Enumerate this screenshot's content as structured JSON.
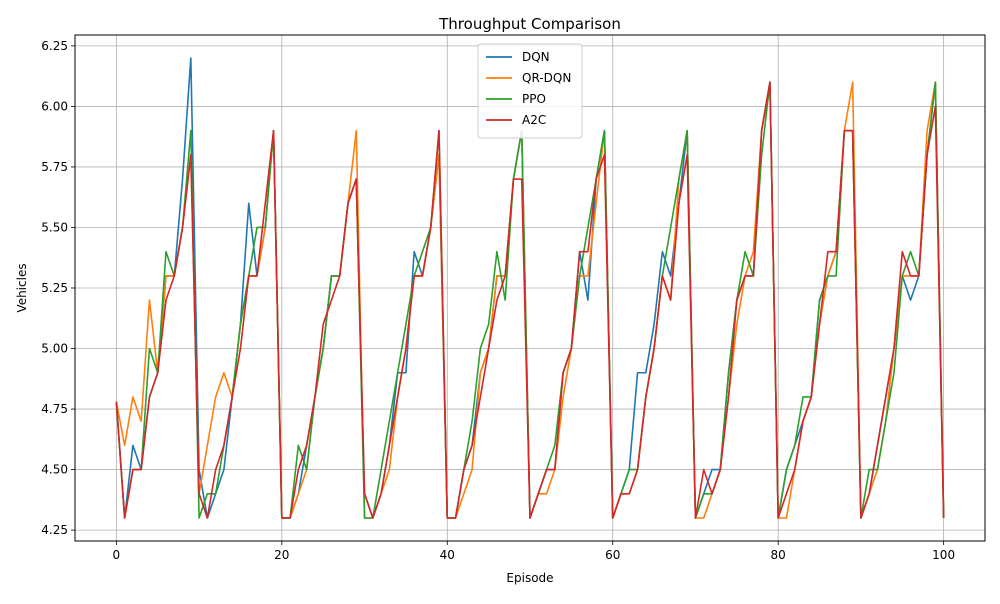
{
  "chart_data": {
    "type": "line",
    "title": "Throughput Comparison",
    "xlabel": "Episode",
    "ylabel": "Vehicles",
    "xlim": [
      -5,
      105
    ],
    "ylim": [
      4.205,
      6.295
    ],
    "x_ticks": [
      0,
      20,
      40,
      60,
      80,
      100
    ],
    "y_ticks": [
      4.25,
      4.5,
      4.75,
      5.0,
      5.25,
      5.5,
      5.75,
      6.0,
      6.25
    ],
    "x_tick_labels": [
      "0",
      "20",
      "40",
      "60",
      "80",
      "100"
    ],
    "y_tick_labels": [
      "4.25",
      "4.50",
      "4.75",
      "5.00",
      "5.25",
      "5.50",
      "5.75",
      "6.00",
      "6.25"
    ],
    "grid": true,
    "legend": "top-center",
    "x": [
      0,
      1,
      2,
      3,
      4,
      5,
      6,
      7,
      8,
      9,
      10,
      11,
      12,
      13,
      14,
      15,
      16,
      17,
      18,
      19,
      20,
      21,
      22,
      23,
      24,
      25,
      26,
      27,
      28,
      29,
      30,
      31,
      32,
      33,
      34,
      35,
      36,
      37,
      38,
      39,
      40,
      41,
      42,
      43,
      44,
      45,
      46,
      47,
      48,
      49,
      50,
      51,
      52,
      53,
      54,
      55,
      56,
      57,
      58,
      59,
      60,
      61,
      62,
      63,
      64,
      65,
      66,
      67,
      68,
      69,
      70,
      71,
      72,
      73,
      74,
      75,
      76,
      77,
      78,
      79,
      80,
      81,
      82,
      83,
      84,
      85,
      86,
      87,
      88,
      89,
      90,
      91,
      92,
      93,
      94,
      95,
      96,
      97,
      98,
      99,
      100
    ],
    "series": [
      {
        "name": "DQN",
        "color": "#1f77b4",
        "values": [
          4.78,
          4.3,
          4.6,
          4.5,
          4.8,
          4.9,
          5.3,
          5.3,
          5.7,
          6.2,
          4.5,
          4.3,
          4.4,
          4.5,
          4.8,
          5.1,
          5.6,
          5.3,
          5.5,
          5.9,
          4.3,
          4.3,
          4.4,
          4.6,
          4.8,
          5.0,
          5.3,
          5.3,
          5.6,
          5.7,
          4.4,
          4.3,
          4.4,
          4.6,
          4.9,
          4.9,
          5.4,
          5.3,
          5.5,
          5.8,
          4.3,
          4.3,
          4.5,
          4.6,
          4.9,
          5.0,
          5.3,
          5.3,
          5.7,
          5.9,
          4.3,
          4.4,
          4.5,
          4.5,
          4.9,
          5.0,
          5.4,
          5.2,
          5.7,
          5.9,
          4.3,
          4.4,
          4.5,
          4.9,
          4.9,
          5.1,
          5.4,
          5.3,
          5.6,
          5.9,
          4.3,
          4.4,
          4.5,
          4.5,
          4.9,
          5.2,
          5.3,
          5.3,
          5.9,
          6.1,
          4.3,
          4.5,
          4.6,
          4.7,
          4.8,
          5.2,
          5.3,
          5.4,
          5.9,
          5.9,
          4.3,
          4.4,
          4.6,
          4.8,
          5.0,
          5.3,
          5.2,
          5.3,
          5.8,
          6.1,
          4.3
        ]
      },
      {
        "name": "QR-DQN",
        "color": "#ff7f0e",
        "values": [
          4.78,
          4.6,
          4.8,
          4.7,
          5.2,
          4.9,
          5.3,
          5.3,
          5.5,
          5.8,
          4.4,
          4.6,
          4.8,
          4.9,
          4.8,
          5.1,
          5.3,
          5.3,
          5.5,
          5.9,
          4.3,
          4.3,
          4.4,
          4.5,
          4.8,
          5.0,
          5.3,
          5.3,
          5.6,
          5.9,
          4.3,
          4.3,
          4.4,
          4.5,
          4.8,
          5.0,
          5.3,
          5.3,
          5.5,
          5.8,
          4.3,
          4.3,
          4.4,
          4.5,
          4.9,
          5.0,
          5.3,
          5.3,
          5.7,
          5.9,
          4.3,
          4.4,
          4.4,
          4.5,
          4.8,
          5.0,
          5.3,
          5.3,
          5.6,
          5.9,
          4.3,
          4.4,
          4.4,
          4.5,
          4.8,
          5.0,
          5.3,
          5.2,
          5.7,
          5.9,
          4.3,
          4.3,
          4.4,
          4.5,
          4.8,
          5.1,
          5.3,
          5.4,
          5.9,
          6.1,
          4.3,
          4.3,
          4.5,
          4.7,
          4.8,
          5.1,
          5.3,
          5.4,
          5.9,
          6.1,
          4.3,
          4.4,
          4.5,
          4.7,
          5.0,
          5.3,
          5.3,
          5.3,
          5.9,
          6.1,
          4.3
        ]
      },
      {
        "name": "PPO",
        "color": "#2ca02c",
        "values": [
          4.78,
          4.3,
          4.5,
          4.5,
          5.0,
          4.9,
          5.4,
          5.3,
          5.5,
          5.9,
          4.3,
          4.4,
          4.4,
          4.6,
          4.8,
          5.1,
          5.3,
          5.5,
          5.5,
          5.9,
          4.3,
          4.3,
          4.6,
          4.5,
          4.8,
          5.0,
          5.3,
          5.3,
          5.6,
          5.7,
          4.3,
          4.3,
          4.5,
          4.7,
          4.9,
          5.1,
          5.3,
          5.4,
          5.5,
          5.9,
          4.3,
          4.3,
          4.5,
          4.7,
          5.0,
          5.1,
          5.4,
          5.2,
          5.7,
          5.9,
          4.3,
          4.4,
          4.5,
          4.6,
          4.9,
          5.0,
          5.3,
          5.5,
          5.7,
          5.9,
          4.3,
          4.4,
          4.5,
          4.5,
          4.8,
          5.0,
          5.3,
          5.5,
          5.7,
          5.9,
          4.3,
          4.4,
          4.4,
          4.5,
          4.9,
          5.2,
          5.4,
          5.3,
          5.8,
          6.1,
          4.3,
          4.5,
          4.6,
          4.8,
          4.8,
          5.2,
          5.3,
          5.3,
          5.9,
          5.9,
          4.3,
          4.5,
          4.5,
          4.7,
          4.9,
          5.3,
          5.4,
          5.3,
          5.8,
          6.1,
          4.3
        ]
      },
      {
        "name": "A2C",
        "color": "#d62728",
        "values": [
          4.78,
          4.3,
          4.5,
          4.5,
          4.8,
          4.9,
          5.2,
          5.3,
          5.5,
          5.8,
          4.4,
          4.3,
          4.5,
          4.6,
          4.8,
          5.0,
          5.3,
          5.3,
          5.6,
          5.9,
          4.3,
          4.3,
          4.5,
          4.6,
          4.8,
          5.1,
          5.2,
          5.3,
          5.6,
          5.7,
          4.4,
          4.3,
          4.4,
          4.6,
          4.8,
          5.0,
          5.3,
          5.3,
          5.5,
          5.9,
          4.3,
          4.3,
          4.5,
          4.6,
          4.8,
          5.0,
          5.2,
          5.3,
          5.7,
          5.7,
          4.3,
          4.4,
          4.5,
          4.5,
          4.9,
          5.0,
          5.4,
          5.4,
          5.7,
          5.8,
          4.3,
          4.4,
          4.4,
          4.5,
          4.8,
          5.0,
          5.3,
          5.2,
          5.6,
          5.8,
          4.3,
          4.5,
          4.4,
          4.5,
          4.8,
          5.2,
          5.3,
          5.3,
          5.9,
          6.1,
          4.3,
          4.4,
          4.5,
          4.7,
          4.8,
          5.1,
          5.4,
          5.4,
          5.9,
          5.9,
          4.3,
          4.4,
          4.6,
          4.8,
          5.0,
          5.4,
          5.3,
          5.3,
          5.8,
          6.0,
          4.3
        ]
      }
    ]
  }
}
